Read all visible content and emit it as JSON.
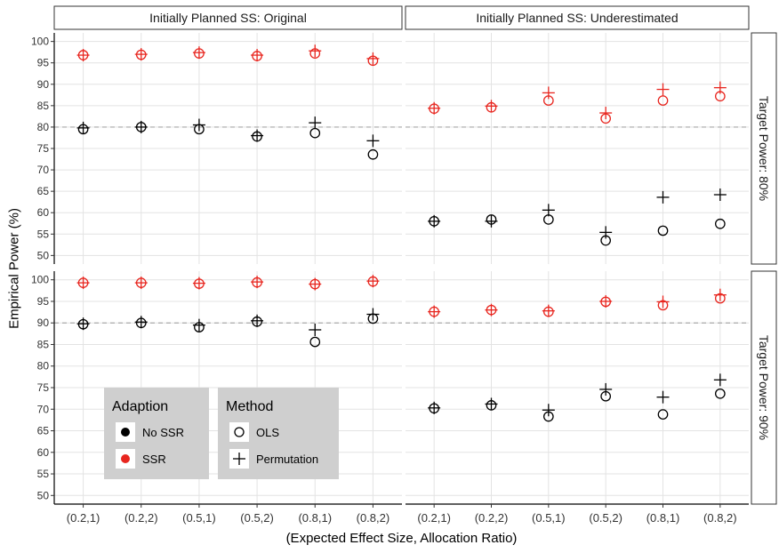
{
  "chart_data": {
    "type": "scatter",
    "ylabel": "Empirical Power (%)",
    "xlabel": "(Expected Effect Size, Allocation Ratio)",
    "categories": [
      "(0.2,1)",
      "(0.2,2)",
      "(0.5,1)",
      "(0.5,2)",
      "(0.8,1)",
      "(0.8,2)"
    ],
    "ylim": [
      48,
      102
    ],
    "yticks": [
      50,
      55,
      60,
      65,
      70,
      75,
      80,
      85,
      90,
      95,
      100
    ],
    "grid": true,
    "colors": {
      "No SSR": "#000000",
      "SSR": "#e8261f",
      "reference_line": "#aaaaaa"
    },
    "facet_columns": [
      "Initially Planned SS: Original",
      "Initially Planned SS: Underestimated"
    ],
    "facet_rows": [
      {
        "label": "Target Power: 80%",
        "reference": 80
      },
      {
        "label": "Target Power: 90%",
        "reference": 90
      }
    ],
    "panels": [
      {
        "column": "Initially Planned SS: Original",
        "row": "Target Power: 80%",
        "series": [
          {
            "adaption": "No SSR",
            "method": "OLS",
            "values": [
              79.5,
              80.0,
              79.5,
              77.8,
              78.6,
              73.6
            ]
          },
          {
            "adaption": "No SSR",
            "method": "Permutation",
            "values": [
              79.8,
              80.0,
              80.5,
              78.0,
              81.0,
              76.8
            ]
          },
          {
            "adaption": "SSR",
            "method": "OLS",
            "values": [
              96.8,
              96.9,
              97.2,
              96.6,
              97.2,
              95.5
            ]
          },
          {
            "adaption": "SSR",
            "method": "Permutation",
            "values": [
              96.8,
              97.0,
              97.4,
              96.8,
              97.8,
              96.0
            ]
          }
        ]
      },
      {
        "column": "Initially Planned SS: Underestimated",
        "row": "Target Power: 80%",
        "series": [
          {
            "adaption": "No SSR",
            "method": "OLS",
            "values": [
              58.0,
              58.4,
              58.4,
              53.5,
              55.8,
              57.4
            ]
          },
          {
            "adaption": "No SSR",
            "method": "Permutation",
            "values": [
              58.0,
              58.0,
              60.6,
              55.4,
              63.6,
              64.2
            ]
          },
          {
            "adaption": "SSR",
            "method": "OLS",
            "values": [
              84.3,
              84.6,
              86.2,
              82.0,
              86.2,
              87.2
            ]
          },
          {
            "adaption": "SSR",
            "method": "Permutation",
            "values": [
              84.4,
              84.9,
              88.0,
              83.3,
              88.8,
              89.2
            ]
          }
        ]
      },
      {
        "column": "Initially Planned SS: Original",
        "row": "Target Power: 90%",
        "series": [
          {
            "adaption": "No SSR",
            "method": "OLS",
            "values": [
              89.7,
              90.0,
              89.0,
              90.3,
              85.6,
              91.0
            ]
          },
          {
            "adaption": "No SSR",
            "method": "Permutation",
            "values": [
              89.8,
              90.2,
              89.5,
              90.5,
              88.4,
              92.0
            ]
          },
          {
            "adaption": "SSR",
            "method": "OLS",
            "values": [
              99.3,
              99.3,
              99.1,
              99.4,
              99.0,
              99.6
            ]
          },
          {
            "adaption": "SSR",
            "method": "Permutation",
            "values": [
              99.3,
              99.3,
              99.2,
              99.5,
              99.0,
              99.7
            ]
          }
        ]
      },
      {
        "column": "Initially Planned SS: Underestimated",
        "row": "Target Power: 90%",
        "series": [
          {
            "adaption": "No SSR",
            "method": "OLS",
            "values": [
              70.2,
              70.9,
              68.3,
              73.0,
              68.8,
              73.6
            ]
          },
          {
            "adaption": "No SSR",
            "method": "Permutation",
            "values": [
              70.3,
              71.2,
              69.8,
              74.6,
              72.8,
              76.8
            ]
          },
          {
            "adaption": "SSR",
            "method": "OLS",
            "values": [
              92.6,
              93.0,
              92.6,
              94.9,
              94.1,
              95.7
            ]
          },
          {
            "adaption": "SSR",
            "method": "Permutation",
            "values": [
              92.6,
              93.0,
              92.8,
              95.0,
              94.9,
              96.5
            ]
          }
        ]
      }
    ],
    "legends": [
      {
        "title": "Adaption",
        "entries": [
          "No SSR",
          "SSR"
        ]
      },
      {
        "title": "Method",
        "entries": [
          "OLS",
          "Permutation"
        ]
      }
    ]
  }
}
